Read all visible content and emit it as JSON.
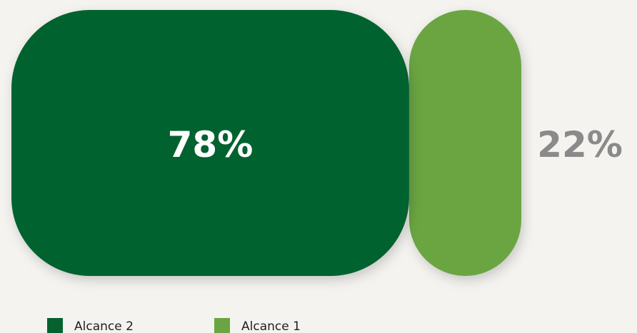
{
  "chart_data": {
    "type": "proportional-bar",
    "series": [
      {
        "name": "Alcance 2",
        "color": "#05622e",
        "values": [
          78
        ],
        "value_labels": [
          "78%"
        ]
      },
      {
        "name": "Alcance 1",
        "color": "#6ba543",
        "values": [
          22
        ],
        "value_labels": [
          "22%"
        ]
      }
    ]
  }
}
